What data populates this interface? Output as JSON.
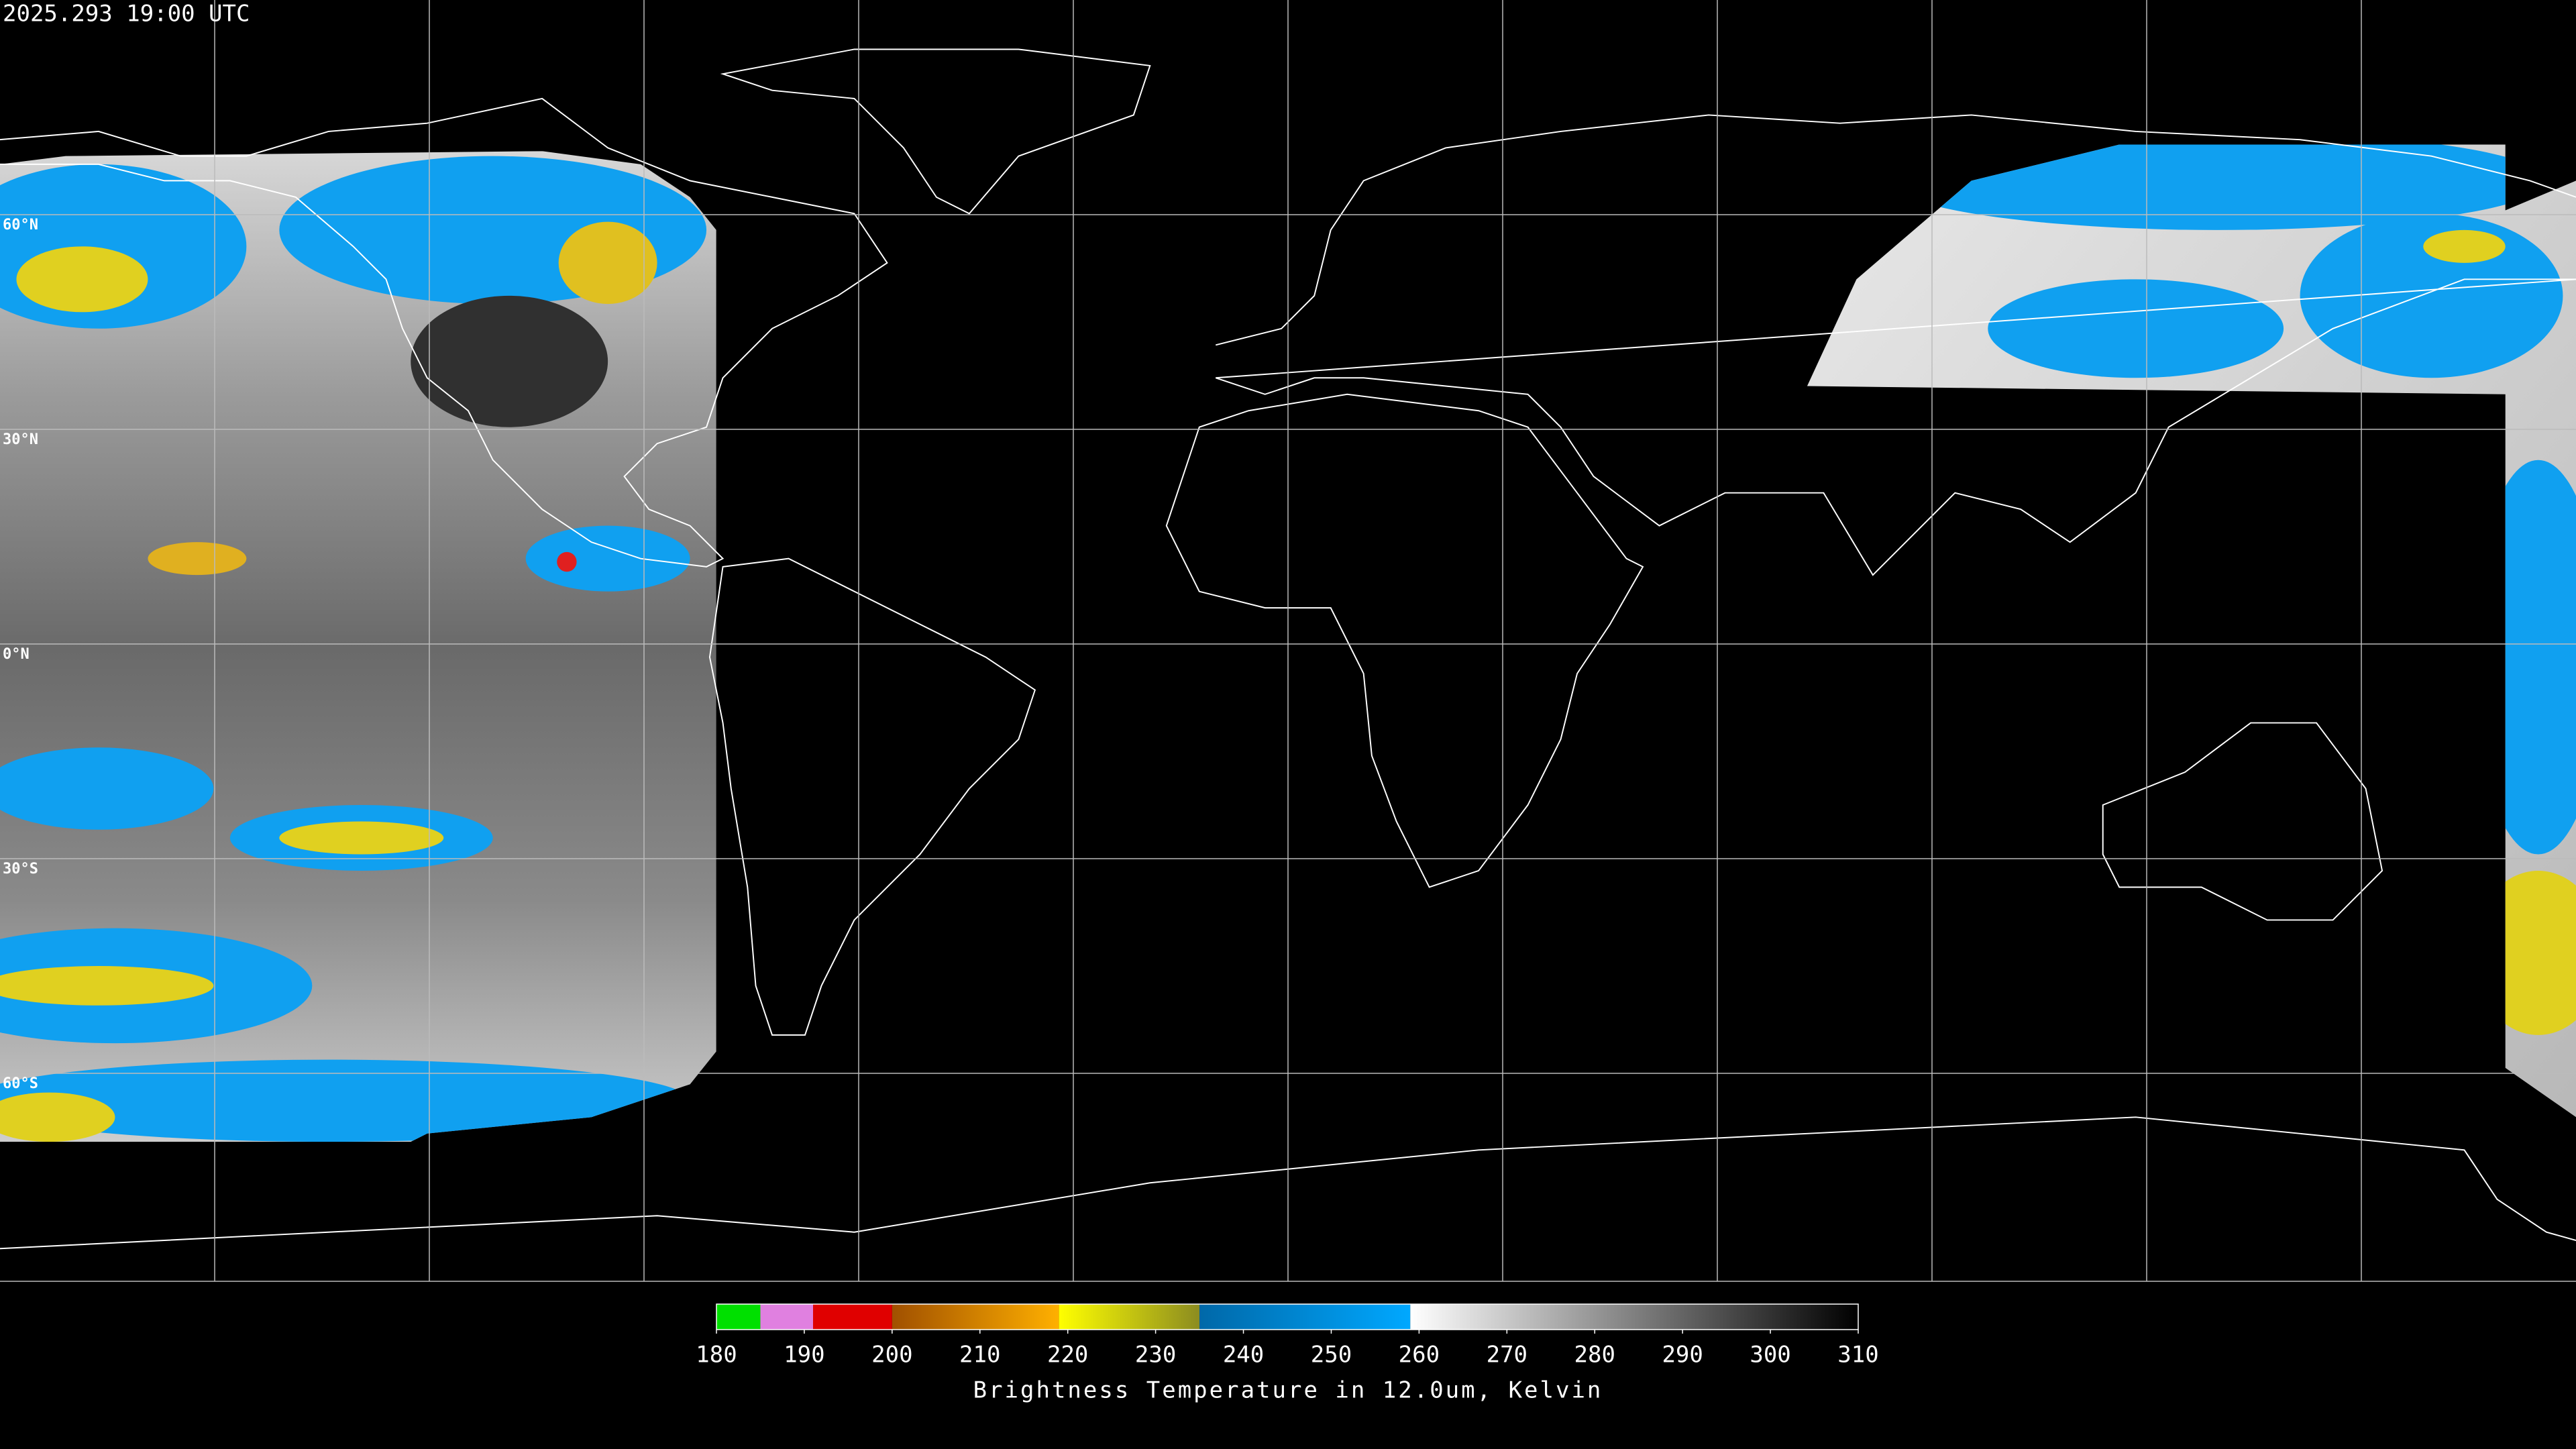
{
  "header": {
    "timestamp": "2025.293 19:00 UTC"
  },
  "map": {
    "latitude_labels": [
      "60°N",
      "30°N",
      "0°N",
      "30°S",
      "60°S"
    ]
  },
  "colorbar": {
    "label": "Brightness Temperature in 12.0um, Kelvin",
    "range": [
      180,
      310
    ],
    "ticks": [
      180,
      190,
      200,
      210,
      220,
      230,
      240,
      250,
      260,
      270,
      280,
      290,
      300,
      310
    ],
    "bands": [
      {
        "from": 180,
        "to": 185,
        "colors": [
          "#00e000",
          "#00e000"
        ]
      },
      {
        "from": 185,
        "to": 191,
        "colors": [
          "#e080e0",
          "#e080e0"
        ]
      },
      {
        "from": 191,
        "to": 200,
        "colors": [
          "#e00000",
          "#e00000"
        ]
      },
      {
        "from": 200,
        "to": 219,
        "colors": [
          "#a05000",
          "#ffb000"
        ]
      },
      {
        "from": 219,
        "to": 235,
        "colors": [
          "#ffff00",
          "#8c8c20"
        ]
      },
      {
        "from": 235,
        "to": 259,
        "colors": [
          "#0068a8",
          "#00a8ff"
        ]
      },
      {
        "from": 259,
        "to": 310,
        "colors": [
          "#ffffff",
          "#000000"
        ]
      }
    ]
  }
}
